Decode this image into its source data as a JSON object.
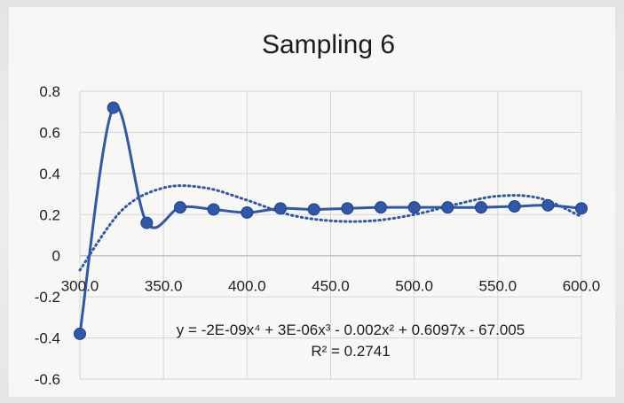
{
  "chart_data": {
    "type": "line",
    "title": "Sampling 6",
    "xlabel": "",
    "ylabel": "",
    "xlim": [
      300,
      600
    ],
    "ylim": [
      -0.6,
      0.8
    ],
    "x_ticks": [
      300,
      350,
      400,
      450,
      500,
      550,
      600
    ],
    "x_tick_labels": [
      "300.0",
      "350.0",
      "400.0",
      "450.0",
      "500.0",
      "550.0",
      "600.0"
    ],
    "y_ticks": [
      -0.6,
      -0.4,
      -0.2,
      0,
      0.2,
      0.4,
      0.6,
      0.8
    ],
    "y_tick_labels": [
      "-0.6",
      "-0.4",
      "-0.2",
      "0",
      "0.2",
      "0.4",
      "0.6",
      "0.8"
    ],
    "grid": true,
    "series": [
      {
        "color": "#2f58a8",
        "style": "smoothed-line-with-markers",
        "x": [
          300,
          320,
          340,
          360,
          380,
          400,
          420,
          440,
          460,
          480,
          500,
          520,
          540,
          560,
          580,
          600
        ],
        "values": [
          -0.38,
          0.72,
          0.16,
          0.235,
          0.225,
          0.21,
          0.23,
          0.225,
          0.23,
          0.235,
          0.235,
          0.235,
          0.235,
          0.24,
          0.245,
          0.23
        ]
      }
    ],
    "trendline": {
      "type": "polynomial",
      "order": 4,
      "style": "dotted",
      "color": "#2f58a8",
      "equation": "y = -2E-09x⁴ + 3E-06x³ - 0.002x² + 0.6097x - 67.005",
      "r_squared": "R² = 0.2741",
      "x": [
        300,
        325,
        350,
        375,
        400,
        425,
        450,
        475,
        500,
        525,
        550,
        575,
        600
      ],
      "values": [
        -0.07,
        0.22,
        0.33,
        0.33,
        0.27,
        0.2,
        0.17,
        0.17,
        0.2,
        0.25,
        0.29,
        0.28,
        0.19
      ]
    }
  }
}
